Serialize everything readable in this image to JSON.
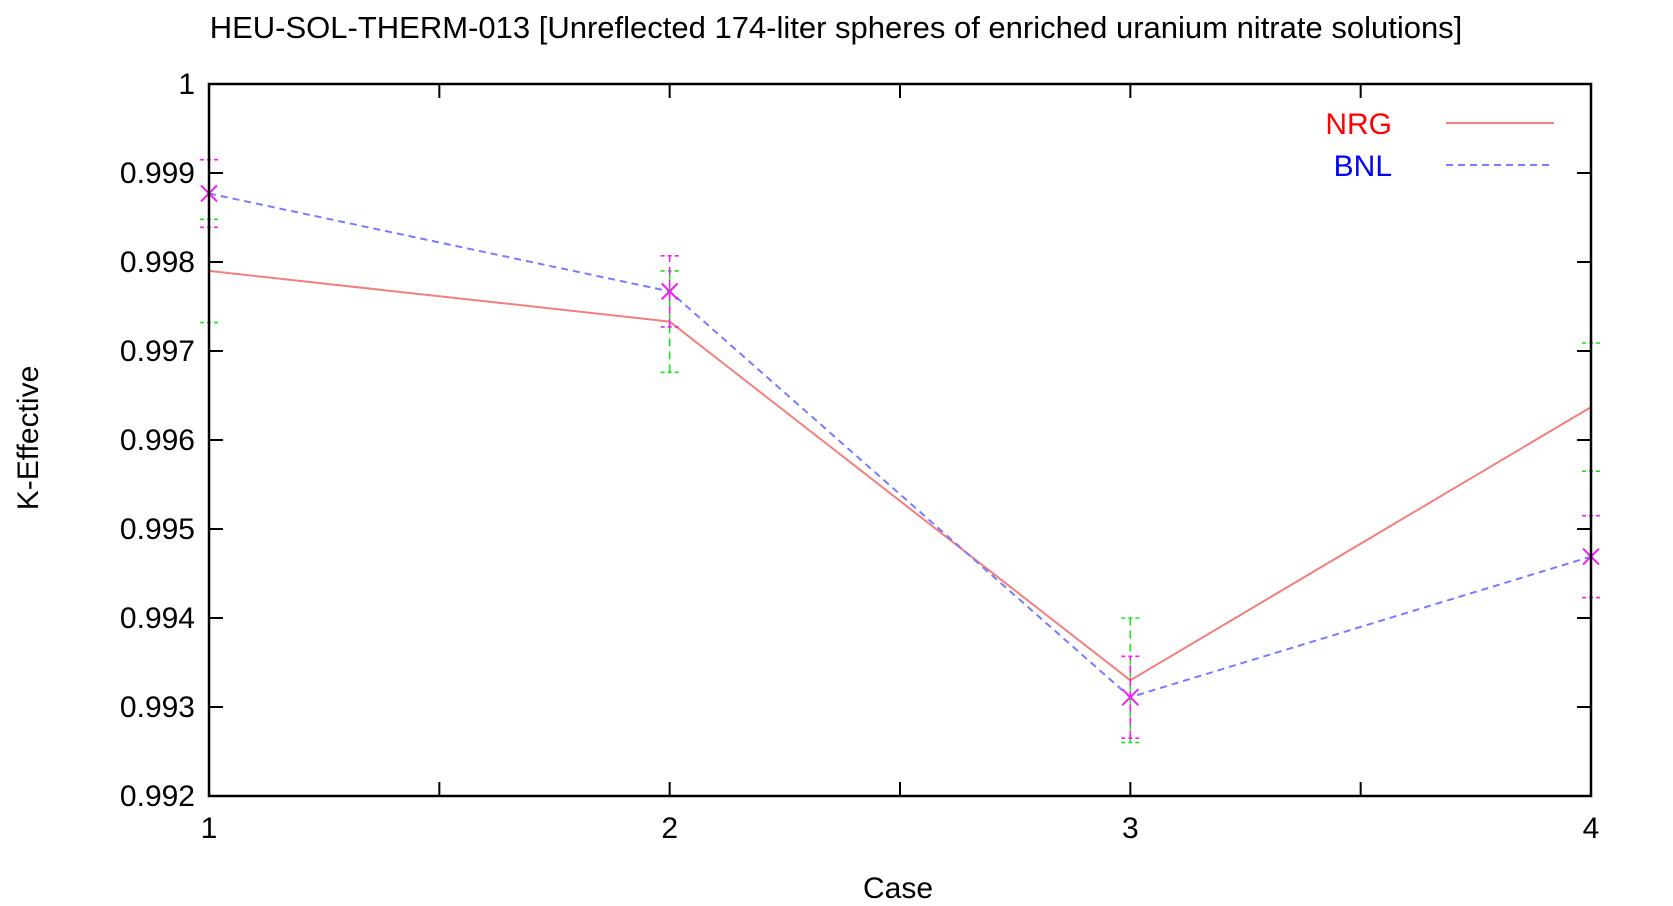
{
  "chart_data": {
    "type": "line",
    "title": "HEU-SOL-THERM-013 [Unreflected 174-liter spheres of enriched uranium nitrate solutions]",
    "xlabel": "Case",
    "ylabel": "K-Effective",
    "xlim": [
      1,
      4
    ],
    "ylim": [
      0.992,
      1
    ],
    "x_ticks": [
      1,
      1.5,
      2,
      2.5,
      3,
      3.5,
      4
    ],
    "x_tick_labels": [
      "1",
      "",
      "2",
      "",
      "3",
      "",
      "4"
    ],
    "y_ticks": [
      0.992,
      0.993,
      0.994,
      0.995,
      0.996,
      0.997,
      0.998,
      0.999,
      1
    ],
    "y_tick_labels": [
      "0.992",
      "0.993",
      "0.994",
      "0.995",
      "0.996",
      "0.997",
      "0.998",
      "0.999",
      "1"
    ],
    "grid": false,
    "legend": "top-right",
    "x": [
      1,
      2,
      3,
      4
    ],
    "series": [
      {
        "name": "NRG",
        "color": "#f08080",
        "dash": "solid",
        "values": [
          0.9979,
          0.99733,
          0.9933,
          0.99637
        ],
        "errors": [
          0.00058,
          0.00057,
          0.0007,
          0.00072
        ],
        "error_color": "#22dd22"
      },
      {
        "name": "BNL",
        "color": "#7b7bff",
        "dash": "dashed",
        "values": [
          0.99877,
          0.99767,
          0.99311,
          0.99469
        ],
        "errors": [
          0.00038,
          0.0004,
          0.00046,
          0.00046
        ],
        "error_color": "#ee22ee",
        "marker": "x"
      }
    ]
  }
}
